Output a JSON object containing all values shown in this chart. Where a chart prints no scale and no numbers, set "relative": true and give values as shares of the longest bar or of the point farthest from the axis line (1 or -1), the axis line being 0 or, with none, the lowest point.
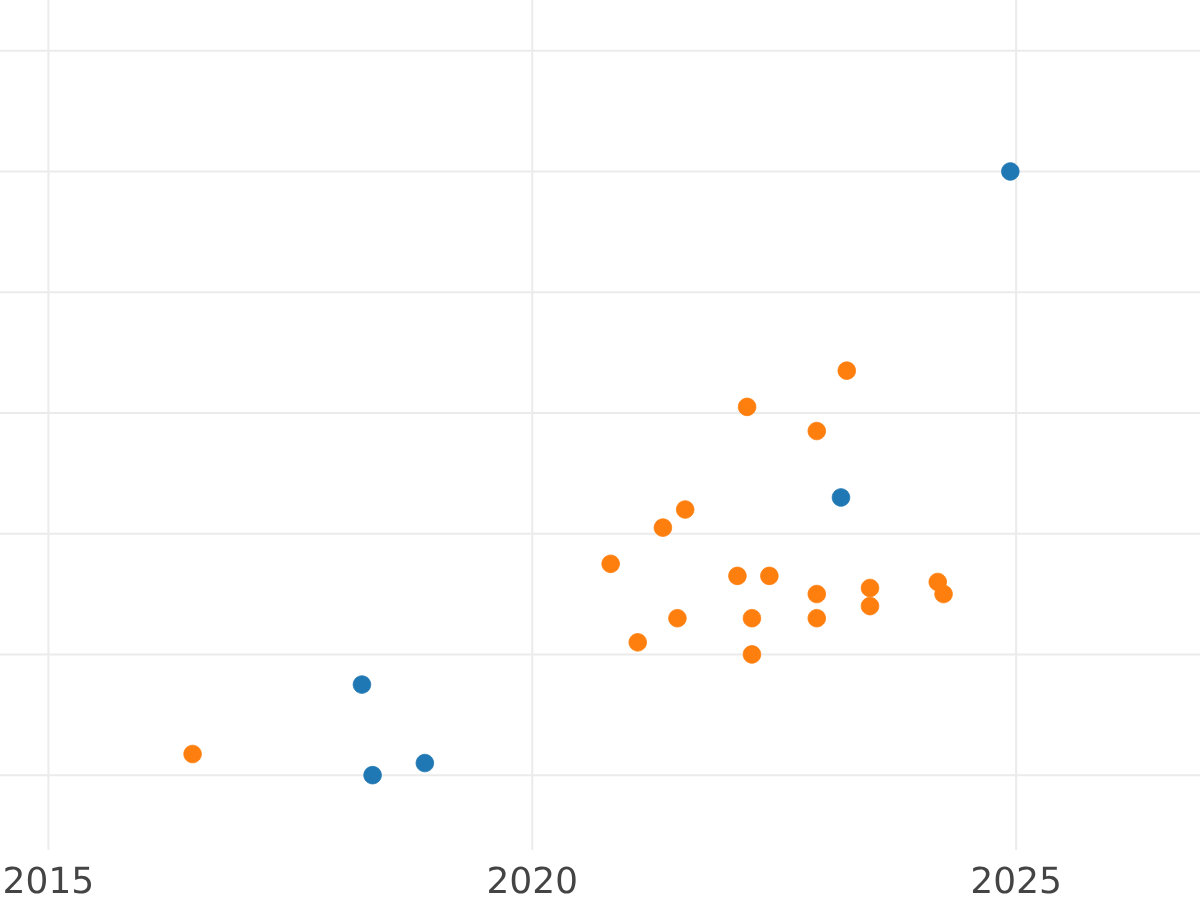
{
  "chart_data": {
    "type": "scatter",
    "relative": true,
    "xlim": [
      2014.5,
      2026.9
    ],
    "xticks": [
      2015,
      2020,
      2025
    ],
    "tick_labels": "x",
    "grid": true,
    "marker": "circle",
    "series": [
      {
        "color": "#1f77b4",
        "x": [
          2018.24,
          2018.35,
          2018.89,
          2023.19,
          2024.94
        ],
        "values": [
          0.15,
          0,
          0.02,
          0.46,
          1
        ]
      },
      {
        "color": "#ff7f0e",
        "x": [
          2016.49,
          2020.81,
          2021.09,
          2021.35,
          2021.5,
          2021.58,
          2022.12,
          2022.22,
          2022.27,
          2022.27,
          2022.45,
          2022.94,
          2022.94,
          2022.94,
          2023.25,
          2023.49,
          2023.49,
          2024.19,
          2024.25
        ],
        "values": [
          0.035,
          0.35,
          0.22,
          0.41,
          0.26,
          0.44,
          0.33,
          0.61,
          0.26,
          0.2,
          0.33,
          0.57,
          0.3,
          0.26,
          0.67,
          0.31,
          0.28,
          0.32,
          0.3
        ]
      }
    ]
  }
}
